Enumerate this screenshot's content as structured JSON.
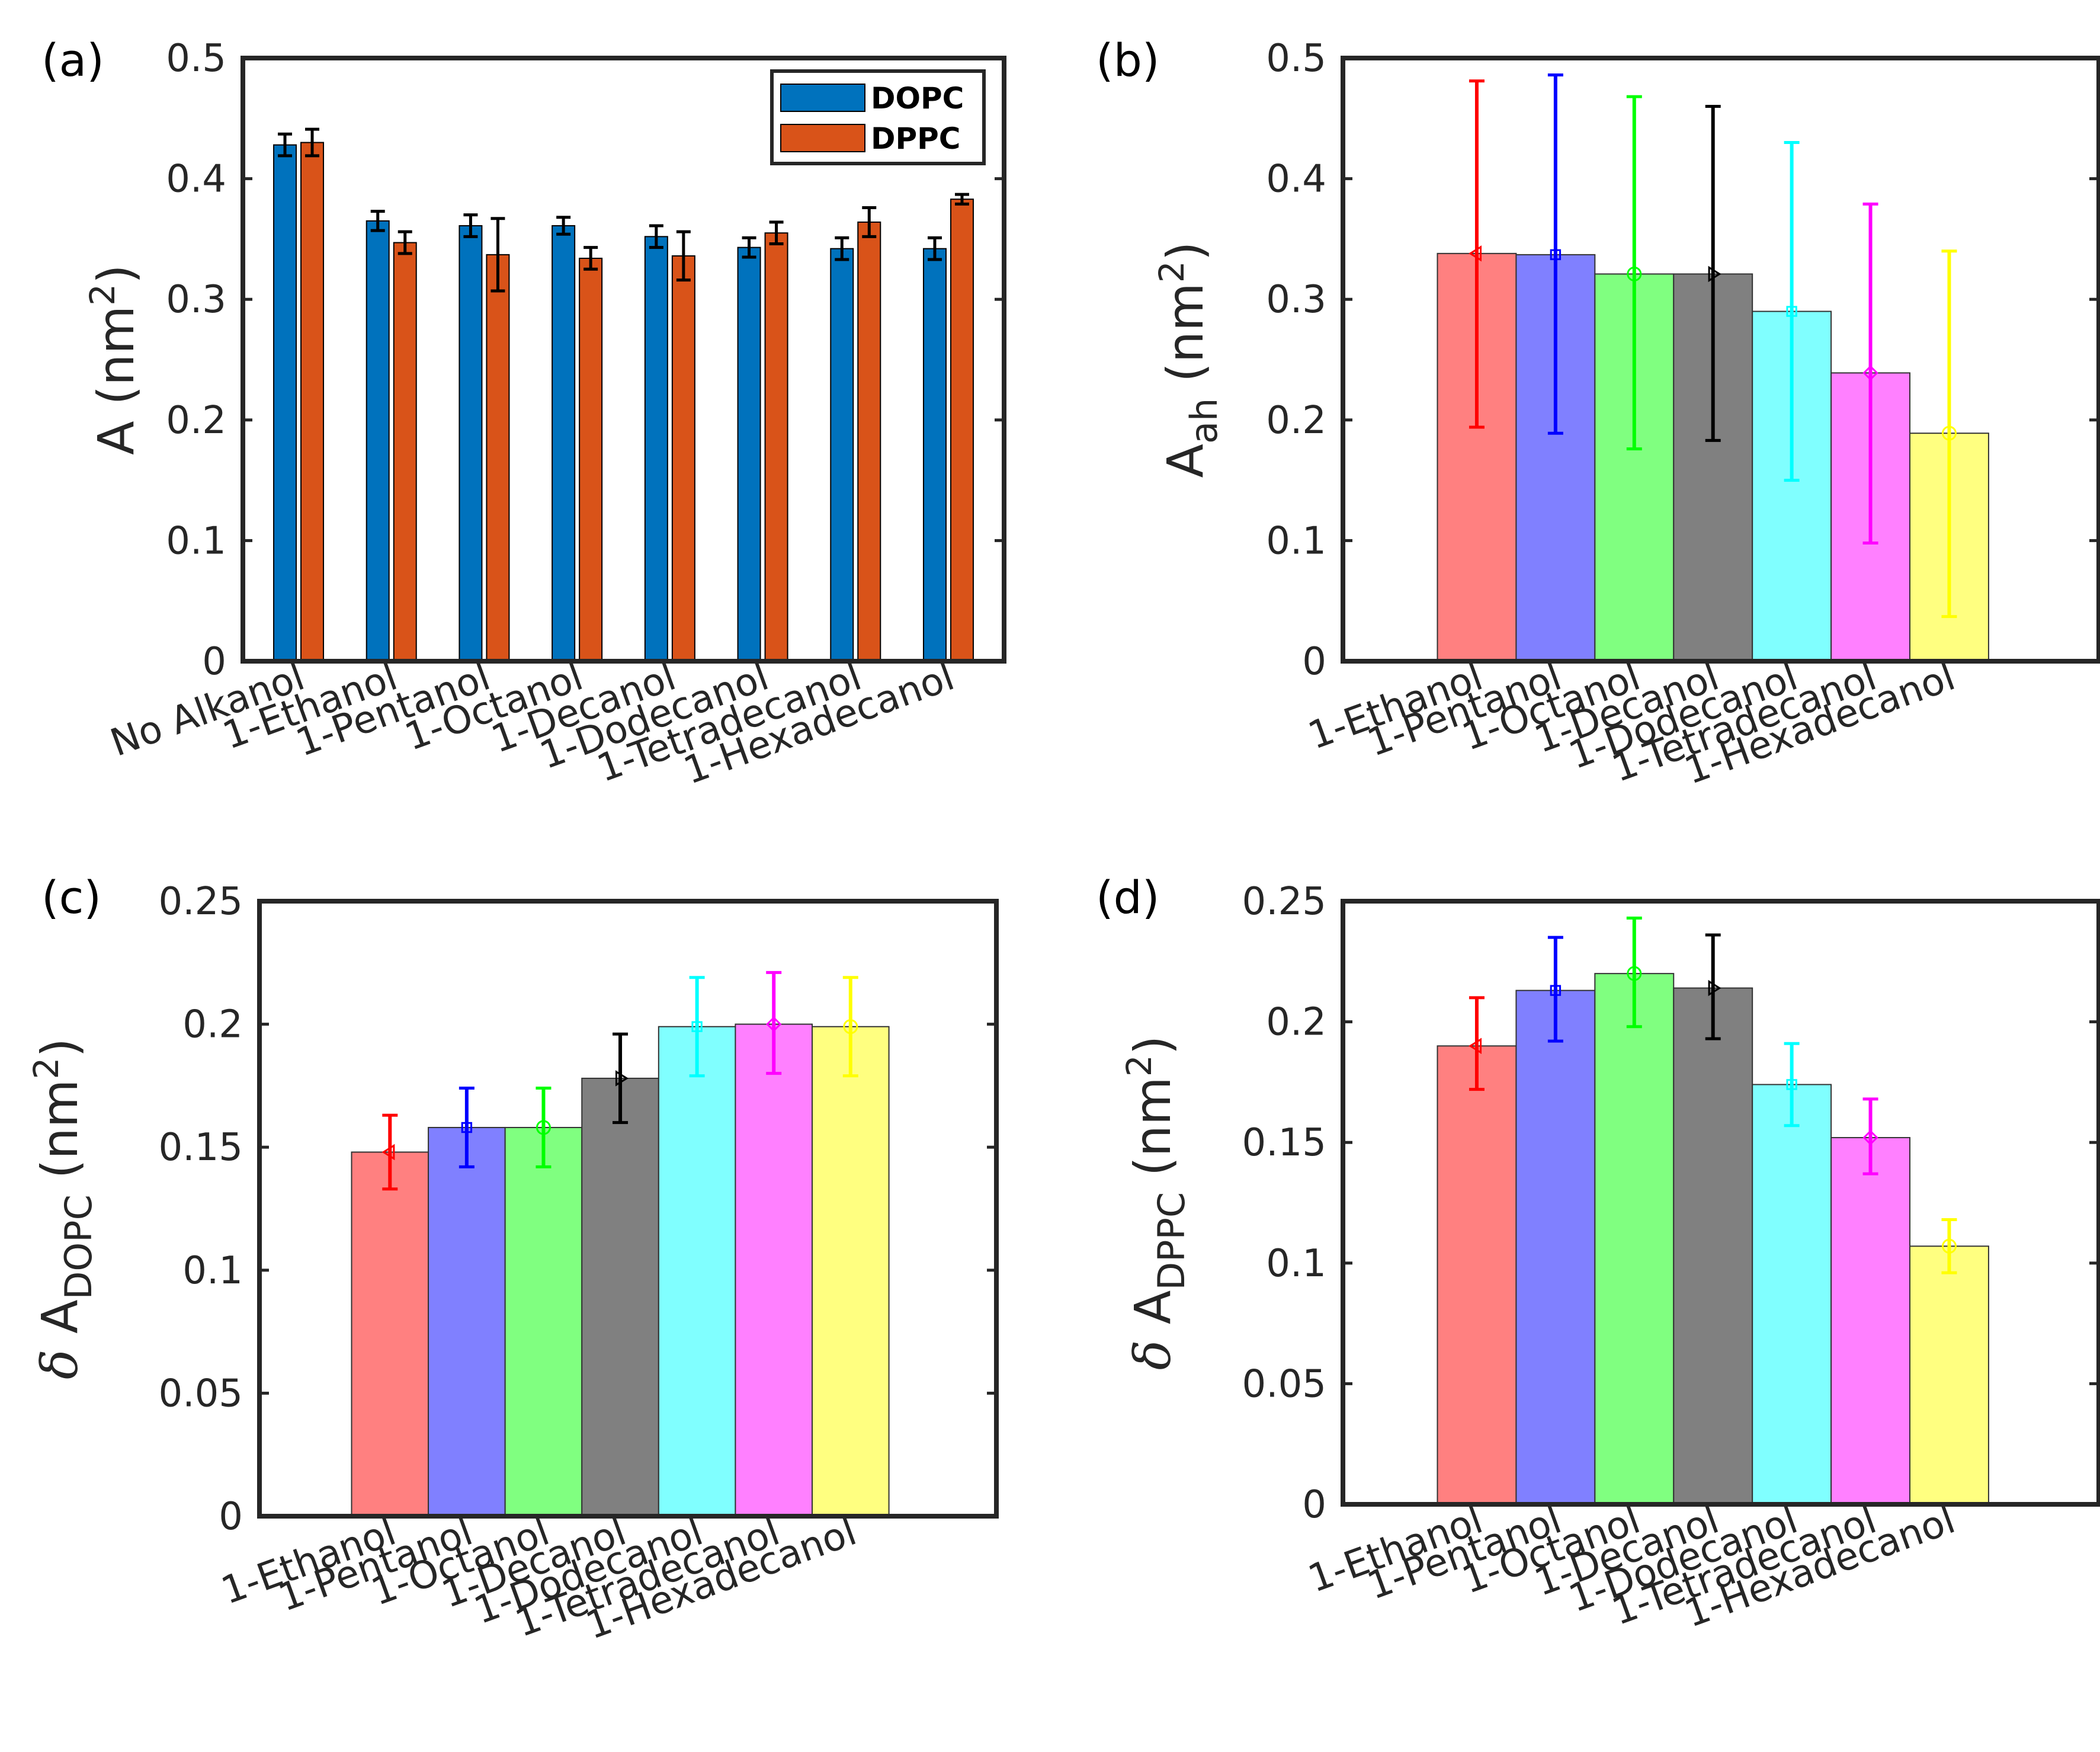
{
  "figure": {
    "panels": [
      {
        "id": "a",
        "letter": "(a)",
        "ylabel_main": "A",
        "ylabel_unit_open": "(nm",
        "ylabel_unit_sup": "2",
        "ylabel_unit_close": ")",
        "ylabel_delta": "",
        "ylabel_sub": ""
      },
      {
        "id": "b",
        "letter": "(b)",
        "ylabel_main": "A",
        "ylabel_sub": "ah",
        "ylabel_unit_open": " (nm",
        "ylabel_unit_sup": "2",
        "ylabel_unit_close": ")",
        "ylabel_delta": ""
      },
      {
        "id": "c",
        "letter": "(c)",
        "ylabel_delta": "δ",
        "ylabel_main": "A",
        "ylabel_sub": "DOPC",
        "ylabel_unit_open": "(nm",
        "ylabel_unit_sup": "2",
        "ylabel_unit_close": ")"
      },
      {
        "id": "d",
        "letter": "(d)",
        "ylabel_delta": "δ",
        "ylabel_main": "A",
        "ylabel_sub": "DPPC",
        "ylabel_unit_open": "(nm",
        "ylabel_unit_sup": "2",
        "ylabel_unit_close": ")"
      }
    ]
  },
  "chart_data": [
    {
      "panel": "a",
      "type": "bar",
      "title": "",
      "xlabel": "",
      "ylabel": "A (nm^2)",
      "ylim": [
        0,
        0.5
      ],
      "yticks": [
        "0",
        "0.1",
        "0.2",
        "0.3",
        "0.4",
        "0.5"
      ],
      "categories": [
        "No Alkanol",
        "1-Ethanol",
        "1-Pentanol",
        "1-Octanol",
        "1-Decanol",
        "1-Dodecanol",
        "1-Tetradecanol",
        "1-Hexadecanol"
      ],
      "legend": {
        "placement": "top-right",
        "entries": [
          "DOPC",
          "DPPC"
        ]
      },
      "series": [
        {
          "name": "DOPC",
          "color": "#0072BD",
          "values": [
            0.428,
            0.365,
            0.361,
            0.361,
            0.352,
            0.343,
            0.342,
            0.342
          ],
          "errors": [
            0.009,
            0.008,
            0.009,
            0.007,
            0.009,
            0.008,
            0.009,
            0.009
          ]
        },
        {
          "name": "DPPC",
          "color": "#D95319",
          "values": [
            0.43,
            0.347,
            0.337,
            0.334,
            0.336,
            0.355,
            0.364,
            0.383
          ],
          "errors": [
            0.011,
            0.009,
            0.03,
            0.009,
            0.02,
            0.009,
            0.012,
            0.004
          ]
        }
      ]
    },
    {
      "panel": "b",
      "type": "bar",
      "title": "",
      "xlabel": "",
      "ylabel": "A_ah (nm^2)",
      "ylim": [
        0,
        0.5
      ],
      "yticks": [
        "0",
        "0.1",
        "0.2",
        "0.3",
        "0.4",
        "0.5"
      ],
      "categories": [
        "1-Ethanol",
        "1-Pentanol",
        "1-Octanol",
        "1-Decanol",
        "1-Dodecanol",
        "1-Tetradecanol",
        "1-Hexadecanol"
      ],
      "colors": [
        "#FF8080",
        "#8080FF",
        "#80FF80",
        "#808080",
        "#80FFFF",
        "#FF80FF",
        "#FFFF80"
      ],
      "error_colors": [
        "#FF0000",
        "#0000FF",
        "#00FF00",
        "#000000",
        "#00FFFF",
        "#FF00FF",
        "#FFFF00"
      ],
      "markers": [
        "diamond-left",
        "square",
        "circle",
        "triangle-right",
        "square",
        "diamond",
        "circle"
      ],
      "values": [
        0.338,
        0.337,
        0.321,
        0.321,
        0.29,
        0.239,
        0.189
      ],
      "err_low": [
        0.194,
        0.189,
        0.176,
        0.183,
        0.15,
        0.098,
        0.037
      ],
      "err_high": [
        0.481,
        0.486,
        0.468,
        0.46,
        0.43,
        0.379,
        0.34
      ]
    },
    {
      "panel": "c",
      "type": "bar",
      "title": "",
      "xlabel": "",
      "ylabel": "δ A_DOPC (nm^2)",
      "ylim": [
        0,
        0.25
      ],
      "yticks": [
        "0",
        "0.05",
        "0.1",
        "0.15",
        "0.2",
        "0.25"
      ],
      "categories": [
        "1-Ethanol",
        "1-Pentanol",
        "1-Octanol",
        "1-Decanol",
        "1-Dodecanol",
        "1-Tetradecanol",
        "1-Hexadecanol"
      ],
      "colors": [
        "#FF8080",
        "#8080FF",
        "#80FF80",
        "#808080",
        "#80FFFF",
        "#FF80FF",
        "#FFFF80"
      ],
      "error_colors": [
        "#FF0000",
        "#0000FF",
        "#00FF00",
        "#000000",
        "#00FFFF",
        "#FF00FF",
        "#FFFF00"
      ],
      "markers": [
        "diamond-left",
        "square",
        "circle",
        "triangle-right",
        "square",
        "diamond",
        "circle"
      ],
      "values": [
        0.148,
        0.158,
        0.158,
        0.178,
        0.199,
        0.2,
        0.199
      ],
      "err_low": [
        0.133,
        0.142,
        0.142,
        0.16,
        0.179,
        0.18,
        0.179
      ],
      "err_high": [
        0.163,
        0.174,
        0.174,
        0.196,
        0.219,
        0.221,
        0.219
      ]
    },
    {
      "panel": "d",
      "type": "bar",
      "title": "",
      "xlabel": "",
      "ylabel": "δ A_DPPC (nm^2)",
      "ylim": [
        0,
        0.25
      ],
      "yticks": [
        "0",
        "0.05",
        "0.1",
        "0.15",
        "0.2",
        "0.25"
      ],
      "categories": [
        "1-Ethanol",
        "1-Pentanol",
        "1-Octanol",
        "1-Decanol",
        "1-Dodecanol",
        "1-Tetradecanol",
        "1-Hexadecanol"
      ],
      "colors": [
        "#FF8080",
        "#8080FF",
        "#80FF80",
        "#808080",
        "#80FFFF",
        "#FF80FF",
        "#FFFF80"
      ],
      "error_colors": [
        "#FF0000",
        "#0000FF",
        "#00FF00",
        "#000000",
        "#00FFFF",
        "#FF00FF",
        "#FFFF00"
      ],
      "markers": [
        "diamond-left",
        "square",
        "circle",
        "triangle-right",
        "square",
        "diamond",
        "circle"
      ],
      "values": [
        0.19,
        0.213,
        0.22,
        0.214,
        0.174,
        0.152,
        0.107
      ],
      "err_low": [
        0.172,
        0.192,
        0.198,
        0.193,
        0.157,
        0.137,
        0.096
      ],
      "err_high": [
        0.21,
        0.235,
        0.243,
        0.236,
        0.191,
        0.168,
        0.118
      ]
    }
  ]
}
